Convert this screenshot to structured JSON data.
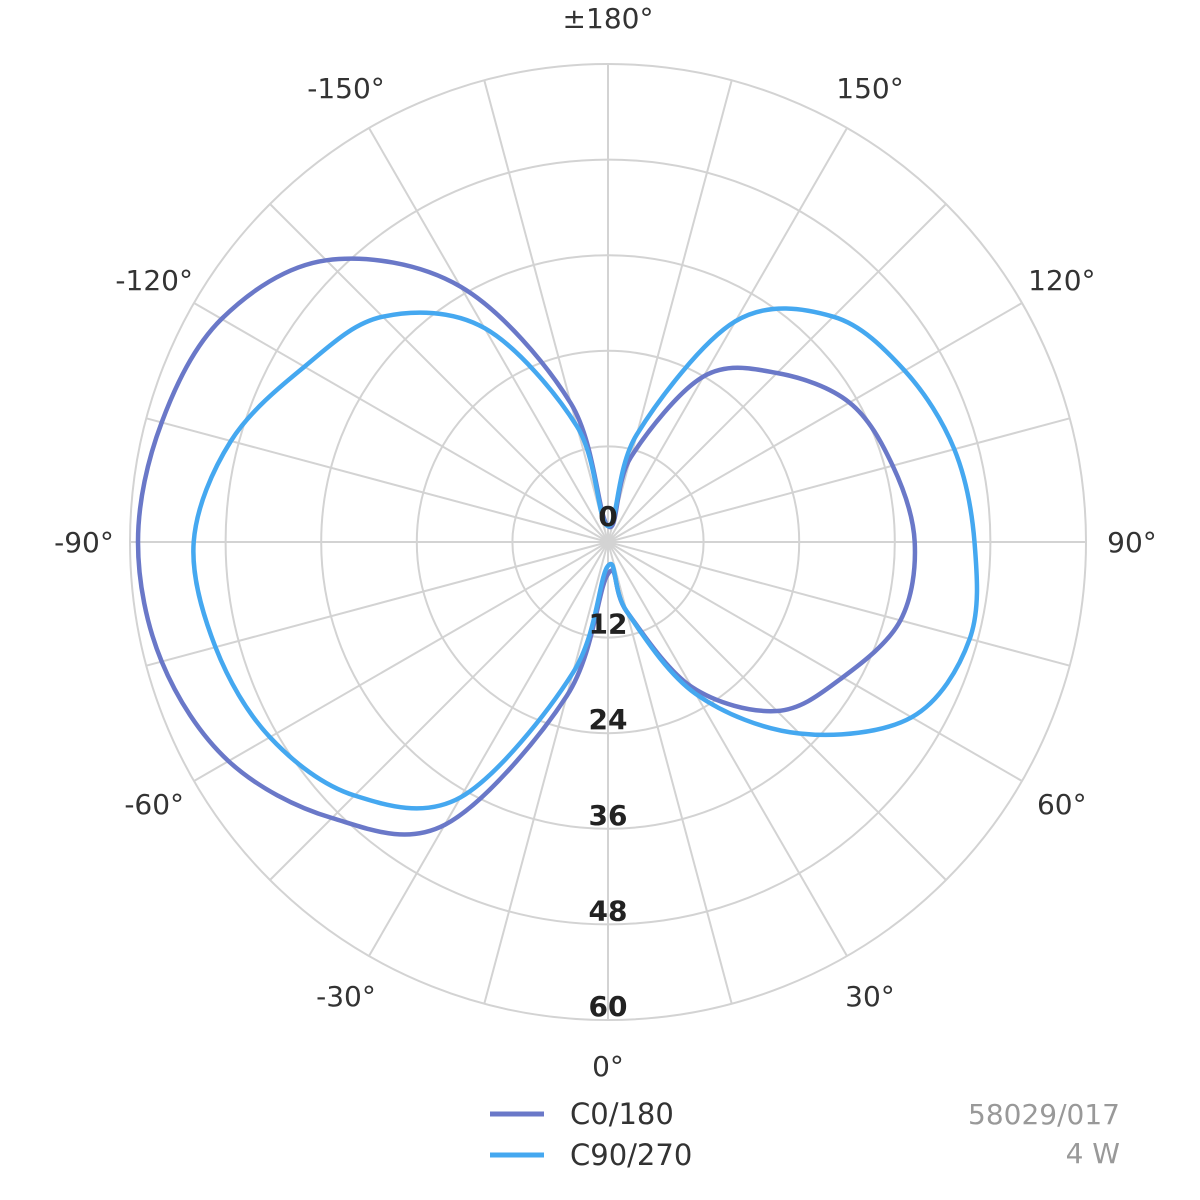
{
  "chart_data": {
    "type": "polar-line",
    "angle_ticks": [
      {
        "angle": 0,
        "label": "0°"
      },
      {
        "angle": 30,
        "label": "30°"
      },
      {
        "angle": 60,
        "label": "60°"
      },
      {
        "angle": 90,
        "label": "90°"
      },
      {
        "angle": 120,
        "label": "120°"
      },
      {
        "angle": 150,
        "label": "150°"
      },
      {
        "angle": 180,
        "label": "±180°"
      },
      {
        "angle": -150,
        "label": "-150°"
      },
      {
        "angle": -120,
        "label": "-120°"
      },
      {
        "angle": -90,
        "label": "-90°"
      },
      {
        "angle": -60,
        "label": "-60°"
      },
      {
        "angle": -30,
        "label": "-30°"
      }
    ],
    "radial_ticks": [
      "0",
      "12",
      "24",
      "36",
      "48",
      "60"
    ],
    "rlim": [
      0,
      60
    ],
    "grid": true,
    "series": [
      {
        "name": "C0/180",
        "color": "#6a78c8",
        "points": [
          [
            0,
            4
          ],
          [
            15,
            9
          ],
          [
            30,
            21
          ],
          [
            45,
            30
          ],
          [
            60,
            34
          ],
          [
            75,
            38
          ],
          [
            90,
            38.5
          ],
          [
            105,
            37
          ],
          [
            120,
            35
          ],
          [
            135,
            30
          ],
          [
            150,
            24
          ],
          [
            165,
            11
          ],
          [
            180,
            2
          ],
          [
            -165,
            18
          ],
          [
            -150,
            37
          ],
          [
            -135,
            50
          ],
          [
            -120,
            56
          ],
          [
            -105,
            58
          ],
          [
            -90,
            59
          ],
          [
            -75,
            58
          ],
          [
            -60,
            55
          ],
          [
            -45,
            49
          ],
          [
            -30,
            41
          ],
          [
            -15,
            20
          ],
          [
            0,
            4
          ]
        ]
      },
      {
        "name": "C90/270",
        "color": "#45a8f0",
        "points": [
          [
            0,
            3
          ],
          [
            15,
            9
          ],
          [
            30,
            22
          ],
          [
            45,
            34
          ],
          [
            60,
            44
          ],
          [
            75,
            47
          ],
          [
            90,
            46
          ],
          [
            105,
            45
          ],
          [
            120,
            43
          ],
          [
            135,
            40
          ],
          [
            150,
            32
          ],
          [
            165,
            14
          ],
          [
            180,
            2
          ],
          [
            -165,
            15
          ],
          [
            -150,
            31
          ],
          [
            -135,
            40
          ],
          [
            -120,
            44
          ],
          [
            -105,
            49
          ],
          [
            -90,
            52
          ],
          [
            -75,
            51
          ],
          [
            -60,
            49
          ],
          [
            -45,
            45
          ],
          [
            -30,
            37
          ],
          [
            -15,
            17
          ],
          [
            0,
            3
          ]
        ]
      }
    ]
  },
  "info": {
    "code": "58029/017",
    "power": "4 W"
  }
}
